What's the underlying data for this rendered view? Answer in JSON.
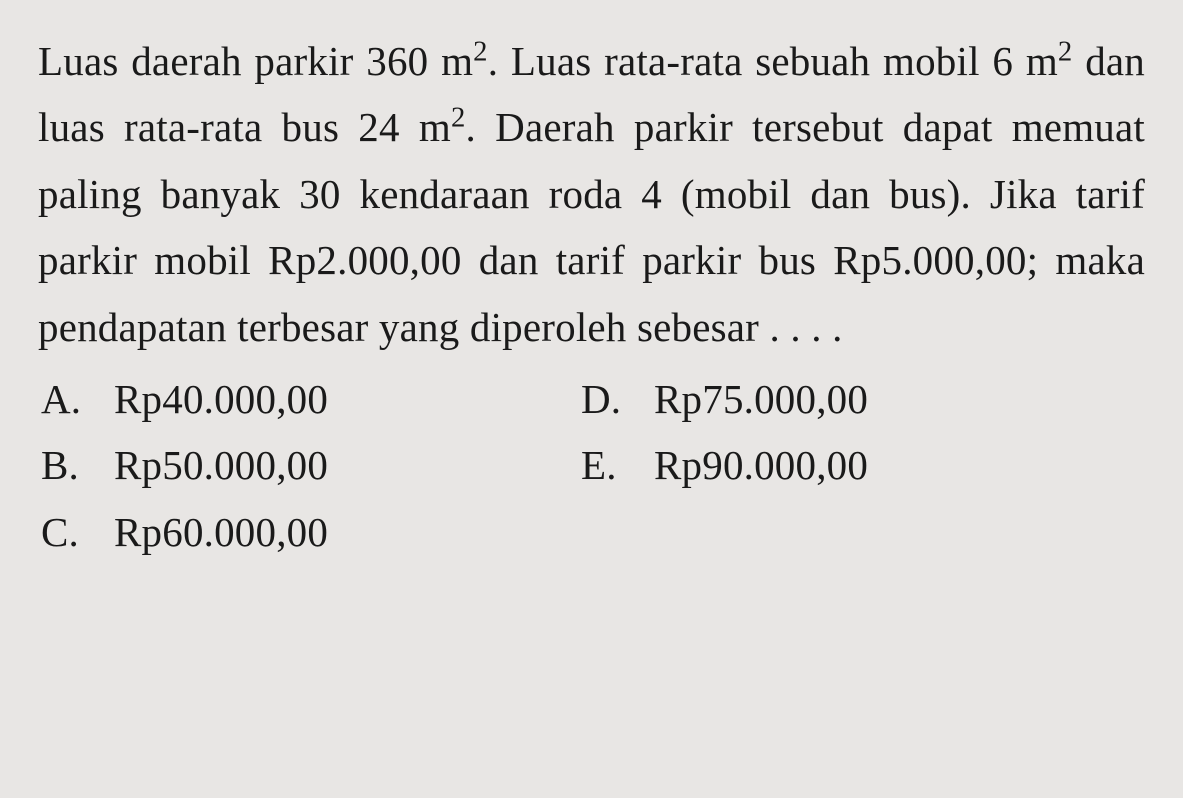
{
  "question": {
    "segments": [
      {
        "text": "Luas daerah parkir 360 m",
        "sup": "2"
      },
      {
        "text": ". Luas rata-rata sebuah mobil 6 m",
        "sup": "2"
      },
      {
        "text": " dan luas rata-rata bus 24 m",
        "sup": "2"
      },
      {
        "text": ". Daerah parkir tersebut dapat memuat paling banyak 30 kendaraan roda 4 (mobil dan bus). Jika tarif parkir mobil Rp2.000,00 dan tarif parkir bus Rp5.000,00; maka pendapatan terbesar yang diperoleh sebesar . . . ."
      }
    ]
  },
  "options": {
    "row1": {
      "left": {
        "label": "A.",
        "value": "Rp40.000,00"
      },
      "right": {
        "label": "D.",
        "value": "Rp75.000,00"
      }
    },
    "row2": {
      "left": {
        "label": "B.",
        "value": "Rp50.000,00"
      },
      "right": {
        "label": "E.",
        "value": "Rp90.000,00"
      }
    },
    "row3": {
      "left": {
        "label": "C.",
        "value": "Rp60.000,00"
      }
    }
  },
  "styling": {
    "background_color": "#e8e6e4",
    "text_color": "#1a1a1a",
    "font_family": "Times New Roman",
    "font_size_pt": 41,
    "line_height": 1.62,
    "text_align": "justify"
  }
}
